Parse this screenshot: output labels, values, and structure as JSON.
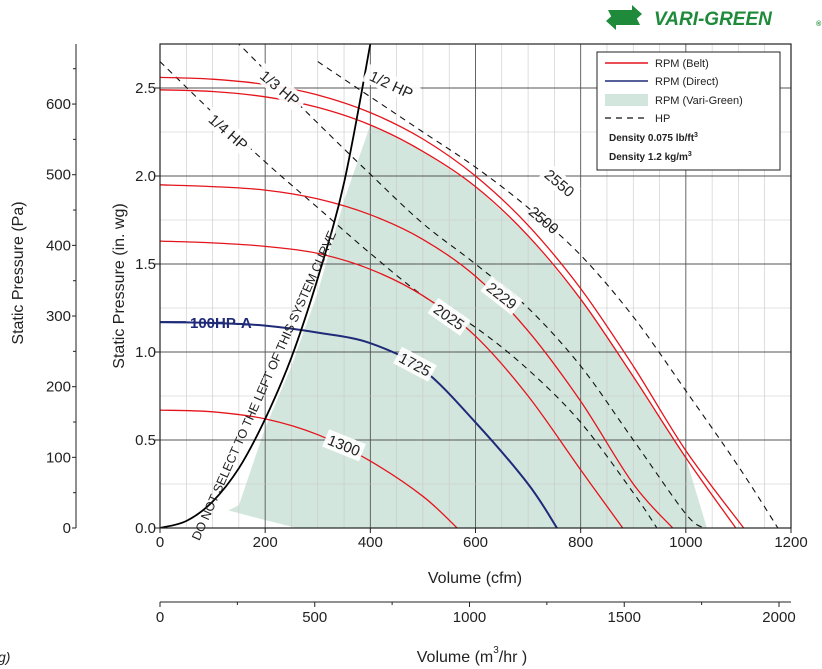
{
  "brand": {
    "name": "VARI-GREEN",
    "mark": "®",
    "color": "#1f8a3a"
  },
  "caption_fragment": "g)",
  "chart_data": {
    "type": "line",
    "xlabel": "Volume (cfm)",
    "ylabel": "Static Pressure (in. wg)",
    "xlim": [
      0,
      1200
    ],
    "ylim": [
      0,
      2.75
    ],
    "x_ticks": [
      0,
      200,
      400,
      600,
      800,
      1000,
      1200
    ],
    "y_ticks": [
      0.0,
      0.5,
      1.0,
      1.5,
      2.0,
      2.5
    ],
    "grid": true,
    "secondary_y": {
      "label": "Static Pressure (Pa)",
      "ticks": [
        0,
        100,
        200,
        300,
        400,
        500,
        600
      ]
    },
    "secondary_x": {
      "label": "Volume (m³/hr )",
      "label_main": "Volume (m",
      "label_sup": "3",
      "label_end": "/hr )",
      "ticks": [
        0,
        500,
        1000,
        1500,
        2000
      ]
    },
    "legend": {
      "placement": "top-right",
      "entries": [
        {
          "label": "RPM (Belt)",
          "style": "red-line"
        },
        {
          "label": "RPM (Direct)",
          "style": "navy-line"
        },
        {
          "label": "RPM (Vari-Green)",
          "style": "green-fill"
        },
        {
          "label": "HP",
          "style": "dashed"
        }
      ],
      "density": [
        {
          "text": "Density  0.075 lb/ft",
          "sup": "3"
        },
        {
          "text": "Density  1.2 kg/m",
          "sup": "3"
        }
      ]
    },
    "colors": {
      "belt": "#e4141b",
      "direct": "#1f2a78",
      "vari_green": "#d3e6de",
      "hp": "#111111"
    },
    "model_label": "100HP-A",
    "system_curve_label": "DO NOT SELECT TO THE LEFT OF THIS SYSTEM CURVE",
    "rpm_curves": [
      {
        "rpm": "1300",
        "kind": "belt",
        "x": [
          0,
          100,
          200,
          300,
          400,
          500,
          565
        ],
        "y": [
          0.67,
          0.66,
          0.62,
          0.53,
          0.38,
          0.18,
          0.0
        ]
      },
      {
        "rpm": "1725",
        "kind": "direct",
        "x": [
          0,
          100,
          200,
          300,
          400,
          500,
          600,
          700,
          755
        ],
        "y": [
          1.17,
          1.165,
          1.15,
          1.11,
          1.05,
          0.9,
          0.6,
          0.25,
          0.0
        ]
      },
      {
        "rpm": "2025",
        "kind": "belt",
        "x": [
          0,
          100,
          200,
          300,
          400,
          500,
          600,
          700,
          800,
          880
        ],
        "y": [
          1.63,
          1.62,
          1.6,
          1.56,
          1.47,
          1.32,
          1.09,
          0.75,
          0.33,
          0.0
        ]
      },
      {
        "rpm": "2229",
        "kind": "belt",
        "x": [
          0,
          100,
          200,
          300,
          400,
          500,
          600,
          700,
          800,
          900,
          975
        ],
        "y": [
          1.95,
          1.94,
          1.92,
          1.87,
          1.78,
          1.64,
          1.43,
          1.12,
          0.72,
          0.25,
          0.0
        ]
      },
      {
        "rpm": "2500",
        "kind": "belt",
        "x": [
          0,
          100,
          200,
          300,
          400,
          500,
          600,
          700,
          800,
          900,
          1000,
          1095
        ],
        "y": [
          2.49,
          2.48,
          2.45,
          2.39,
          2.29,
          2.14,
          1.94,
          1.66,
          1.3,
          0.86,
          0.4,
          0.0
        ]
      },
      {
        "rpm": "2550",
        "kind": "belt",
        "x": [
          0,
          100,
          200,
          300,
          400,
          500,
          600,
          700,
          800,
          900,
          1000,
          1110
        ],
        "y": [
          2.56,
          2.55,
          2.52,
          2.46,
          2.36,
          2.21,
          2.0,
          1.72,
          1.36,
          0.92,
          0.44,
          0.0
        ]
      }
    ],
    "hp_curves": [
      {
        "label": "1/4 HP",
        "x": [
          0,
          100,
          200,
          300,
          400,
          500,
          600,
          700,
          800,
          900,
          945
        ],
        "y": [
          2.65,
          2.36,
          2.08,
          1.82,
          1.56,
          1.32,
          1.14,
          0.9,
          0.6,
          0.2,
          0.0
        ]
      },
      {
        "label": "1/3 HP",
        "x": [
          100,
          200,
          300,
          400,
          500,
          600,
          700,
          800,
          900,
          1000,
          1035
        ],
        "y": [
          2.9,
          2.6,
          2.3,
          2.01,
          1.73,
          1.5,
          1.25,
          0.92,
          0.5,
          0.08,
          0.0
        ]
      },
      {
        "label": "1/2 HP",
        "x": [
          300,
          400,
          500,
          600,
          700,
          800,
          900,
          1000,
          1100,
          1175
        ],
        "y": [
          2.65,
          2.45,
          2.25,
          2.05,
          1.82,
          1.55,
          1.2,
          0.78,
          0.35,
          0.0
        ]
      }
    ],
    "system_curve": {
      "x": [
        0,
        50,
        100,
        150,
        200,
        250,
        300,
        350,
        400
      ],
      "y": [
        0.0,
        0.04,
        0.15,
        0.34,
        0.62,
        0.97,
        1.42,
        1.96,
        2.75
      ]
    },
    "vari_green_region": {
      "x": [
        130,
        150,
        200,
        250,
        300,
        350,
        400,
        500,
        600,
        700,
        800,
        900,
        1000,
        1040,
        260,
        180
      ],
      "y": [
        0.1,
        0.13,
        0.57,
        0.92,
        1.34,
        1.86,
        2.29,
        2.14,
        1.94,
        1.66,
        1.3,
        0.86,
        0.4,
        0.0,
        0.0,
        0.06
      ]
    }
  }
}
